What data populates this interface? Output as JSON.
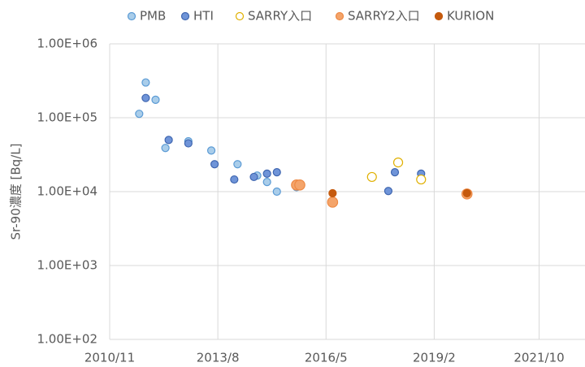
{
  "chart_data": {
    "type": "scatter",
    "y_label": "Sr-90濃度 [Bq/L]",
    "yscale": "log",
    "grid": true,
    "legend": "top",
    "xlim": [
      "2010/11",
      "2022/12"
    ],
    "xticks": [
      "2010/11",
      "2013/8",
      "2016/5",
      "2019/2",
      "2021/10"
    ],
    "ylim": [
      100,
      1000000
    ],
    "yticks": [
      {
        "value": 100,
        "label": "1.00E+02"
      },
      {
        "value": 1000,
        "label": "1.00E+03"
      },
      {
        "value": 10000,
        "label": "1.00E+04"
      },
      {
        "value": 100000,
        "label": "1.00E+05"
      },
      {
        "value": 1000000,
        "label": "1.00E+06"
      }
    ],
    "series": [
      {
        "name": "PMB",
        "color": "#a9cdea",
        "edge": "#5b9bd5",
        "x": [
          "2011/8",
          "2011/10",
          "2012/1",
          "2012/4",
          "2012/11",
          "2013/6",
          "2014/2",
          "2014/8",
          "2014/11",
          "2015/2",
          "2015/8"
        ],
        "values": [
          113000,
          300000,
          175000,
          39000,
          48000,
          36000,
          23500,
          16500,
          13500,
          10000,
          11500
        ]
      },
      {
        "name": "HTI",
        "color": "#6f94d8",
        "edge": "#3f66b0",
        "x": [
          "2011/10",
          "2012/5",
          "2012/11",
          "2013/7",
          "2014/1",
          "2014/7",
          "2014/11",
          "2015/2",
          "2017/12",
          "2018/2",
          "2018/10"
        ],
        "values": [
          185000,
          50000,
          45000,
          23500,
          14600,
          15800,
          17500,
          18300,
          10200,
          18300,
          17500
        ]
      },
      {
        "name": "SARRY入口",
        "color": "#ffffff",
        "edge": "#e0b000",
        "x": [
          "2017/7",
          "2018/3",
          "2018/10"
        ],
        "values": [
          15800,
          24800,
          14600
        ]
      },
      {
        "name": "SARRY2入口",
        "color": "#f4a46a",
        "edge": "#ee8a45",
        "x": [
          "2015/8",
          "2015/9",
          "2016/7",
          "2019/12"
        ],
        "values": [
          12300,
          12300,
          7200,
          9300
        ]
      },
      {
        "name": "KURION",
        "color": "#c55a0e",
        "edge": "#c55a0e",
        "x": [
          "2016/7",
          "2019/12"
        ],
        "values": [
          9500,
          9500
        ]
      }
    ]
  }
}
